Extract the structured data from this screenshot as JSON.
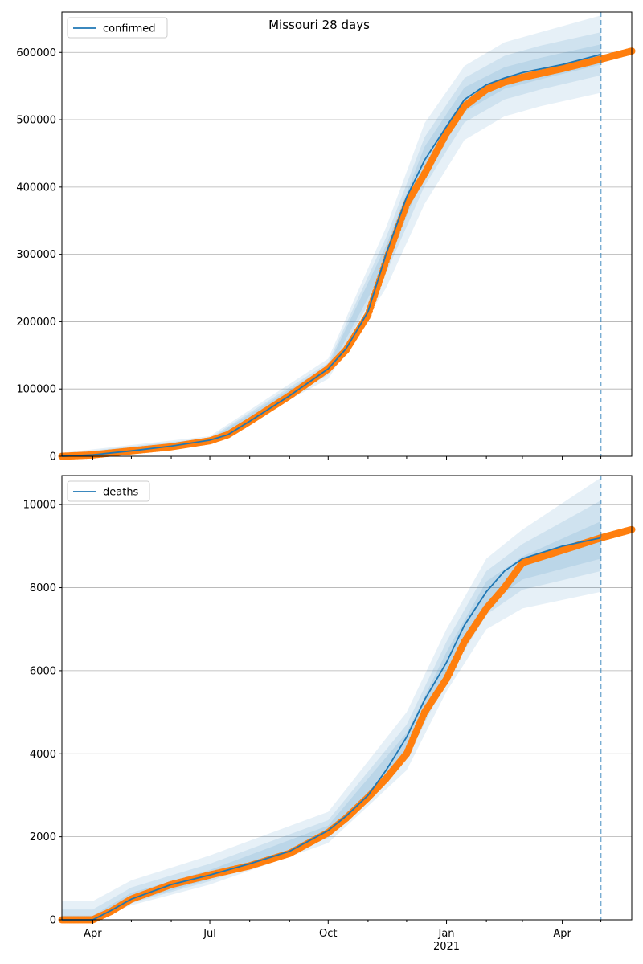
{
  "figure": {
    "title": "Missouri 28 days",
    "colors": {
      "model": "#1f77b4",
      "observed": "#ff7f0e",
      "grid": "#b0b0b0"
    },
    "x_ticks": [
      {
        "label": "Apr",
        "date": "2020-04-01"
      },
      {
        "label": "Jul",
        "date": "2020-07-01"
      },
      {
        "label": "Oct",
        "date": "2020-10-01"
      },
      {
        "label": "Jan",
        "sublabel": "2021",
        "date": "2021-01-01"
      },
      {
        "label": "Apr",
        "date": "2021-04-01"
      }
    ],
    "x_range": [
      "2020-03-08",
      "2021-05-25"
    ],
    "forecast_start": "2021-05-01"
  },
  "chart_data": [
    {
      "type": "line",
      "legend": "confirmed",
      "legend_position": "top-left",
      "grid": "horizontal",
      "ylim": [
        0,
        660000
      ],
      "yticks": [
        0,
        100000,
        200000,
        300000,
        400000,
        500000,
        600000
      ],
      "ytick_labels": [
        "0",
        "100000",
        "200000",
        "300000",
        "400000",
        "500000",
        "600000"
      ],
      "model_curve": {
        "x": [
          "2020-03-08",
          "2020-04-01",
          "2020-05-01",
          "2020-06-01",
          "2020-07-01",
          "2020-07-15",
          "2020-08-01",
          "2020-09-01",
          "2020-10-01",
          "2020-10-15",
          "2020-11-01",
          "2020-11-15",
          "2020-12-01",
          "2020-12-15",
          "2021-01-01",
          "2021-01-15",
          "2021-02-01",
          "2021-02-15",
          "2021-03-01",
          "2021-04-01",
          "2021-05-01"
        ],
        "y": [
          0,
          2000,
          8000,
          15000,
          24000,
          32000,
          52000,
          90000,
          130000,
          160000,
          215000,
          300000,
          385000,
          440000,
          490000,
          530000,
          552000,
          562000,
          570000,
          582000,
          597000
        ]
      },
      "observed": {
        "x": [
          "2020-03-08",
          "2020-04-01",
          "2020-05-01",
          "2020-06-01",
          "2020-07-01",
          "2020-07-15",
          "2020-08-01",
          "2020-09-01",
          "2020-10-01",
          "2020-10-15",
          "2020-11-01",
          "2020-11-15",
          "2020-12-01",
          "2020-12-15",
          "2021-01-01",
          "2021-01-15",
          "2021-02-01",
          "2021-02-15",
          "2021-03-01",
          "2021-04-01",
          "2021-05-01",
          "2021-05-25"
        ],
        "y": [
          0,
          2000,
          8000,
          14000,
          23000,
          32000,
          52000,
          90000,
          130000,
          158000,
          210000,
          290000,
          375000,
          420000,
          480000,
          520000,
          545000,
          556000,
          563000,
          576000,
          590000,
          602000
        ]
      },
      "bands": [
        {
          "x": [
            "2020-03-08",
            "2020-07-01",
            "2020-10-01",
            "2020-11-15",
            "2020-12-15",
            "2021-01-15",
            "2021-02-15",
            "2021-03-15",
            "2021-05-01"
          ],
          "lower": [
            0,
            20000,
            115000,
            250000,
            375000,
            470000,
            505000,
            520000,
            540000
          ],
          "upper": [
            5000,
            30000,
            145000,
            340000,
            495000,
            580000,
            615000,
            630000,
            655000
          ]
        },
        {
          "x": [
            "2020-03-08",
            "2020-07-01",
            "2020-10-01",
            "2020-11-15",
            "2020-12-15",
            "2021-01-15",
            "2021-02-15",
            "2021-03-15",
            "2021-05-01"
          ],
          "lower": [
            0,
            21500,
            121000,
            272000,
            402000,
            496000,
            530000,
            545000,
            566000
          ],
          "upper": [
            3500,
            27500,
            139000,
            325000,
            474000,
            562000,
            595000,
            610000,
            630000
          ]
        },
        {
          "x": [
            "2020-03-08",
            "2020-07-01",
            "2020-10-01",
            "2020-11-15",
            "2020-12-15",
            "2021-01-15",
            "2021-02-15",
            "2021-03-15",
            "2021-05-01"
          ],
          "lower": [
            0,
            22500,
            125000,
            285000,
            420000,
            512000,
            546000,
            560000,
            582000
          ],
          "upper": [
            2500,
            25500,
            135000,
            313000,
            460000,
            548000,
            578000,
            592000,
            612000
          ]
        }
      ]
    },
    {
      "type": "line",
      "legend": "deaths",
      "legend_position": "top-left",
      "grid": "horizontal",
      "ylim": [
        0,
        10700
      ],
      "yticks": [
        0,
        2000,
        4000,
        6000,
        8000,
        10000
      ],
      "ytick_labels": [
        "0",
        "2000",
        "4000",
        "6000",
        "8000",
        "10000"
      ],
      "model_curve": {
        "x": [
          "2020-03-08",
          "2020-04-01",
          "2020-04-15",
          "2020-05-01",
          "2020-06-01",
          "2020-07-01",
          "2020-08-01",
          "2020-09-01",
          "2020-10-01",
          "2020-10-15",
          "2020-11-01",
          "2020-11-15",
          "2020-12-01",
          "2020-12-15",
          "2021-01-01",
          "2021-01-15",
          "2021-02-01",
          "2021-02-15",
          "2021-03-01",
          "2021-04-01",
          "2021-05-01"
        ],
        "y": [
          0,
          0,
          220,
          500,
          850,
          1080,
          1350,
          1650,
          2150,
          2500,
          3000,
          3600,
          4400,
          5300,
          6200,
          7100,
          7900,
          8400,
          8700,
          9000,
          9200
        ]
      },
      "observed": {
        "x": [
          "2020-03-08",
          "2020-04-01",
          "2020-04-15",
          "2020-05-01",
          "2020-06-01",
          "2020-07-01",
          "2020-08-01",
          "2020-09-01",
          "2020-10-01",
          "2020-10-15",
          "2020-11-01",
          "2020-11-15",
          "2020-12-01",
          "2020-12-15",
          "2021-01-01",
          "2021-01-15",
          "2021-02-01",
          "2021-02-15",
          "2021-03-01",
          "2021-04-01",
          "2021-05-01",
          "2021-05-25"
        ],
        "y": [
          0,
          0,
          200,
          500,
          850,
          1080,
          1300,
          1600,
          2100,
          2450,
          2950,
          3400,
          4000,
          5000,
          5800,
          6700,
          7500,
          8000,
          8600,
          8900,
          9200,
          9400
        ]
      },
      "bands": [
        {
          "x": [
            "2020-03-08",
            "2020-04-01",
            "2020-05-01",
            "2020-07-01",
            "2020-10-01",
            "2020-12-01",
            "2021-01-01",
            "2021-02-01",
            "2021-03-01",
            "2021-05-01"
          ],
          "lower": [
            0,
            0,
            350,
            850,
            1850,
            3600,
            5500,
            7000,
            7500,
            7900
          ],
          "upper": [
            450,
            450,
            950,
            1550,
            2600,
            5000,
            7000,
            8700,
            9400,
            10650
          ]
        },
        {
          "x": [
            "2020-03-08",
            "2020-04-01",
            "2020-05-01",
            "2020-07-01",
            "2020-10-01",
            "2020-12-01",
            "2021-01-01",
            "2021-02-01",
            "2021-03-01",
            "2021-05-01"
          ],
          "lower": [
            0,
            0,
            400,
            930,
            1970,
            3880,
            5780,
            7350,
            7950,
            8400
          ],
          "upper": [
            250,
            250,
            780,
            1350,
            2400,
            4700,
            6700,
            8400,
            9050,
            10100
          ]
        },
        {
          "x": [
            "2020-03-08",
            "2020-04-01",
            "2020-05-01",
            "2020-07-01",
            "2020-10-01",
            "2020-12-01",
            "2021-01-01",
            "2021-02-01",
            "2021-03-01",
            "2021-05-01"
          ],
          "lower": [
            0,
            0,
            430,
            980,
            2050,
            4050,
            5960,
            7550,
            8200,
            8700
          ],
          "upper": [
            100,
            100,
            650,
            1200,
            2270,
            4500,
            6450,
            8150,
            8750,
            9600
          ]
        }
      ]
    }
  ]
}
